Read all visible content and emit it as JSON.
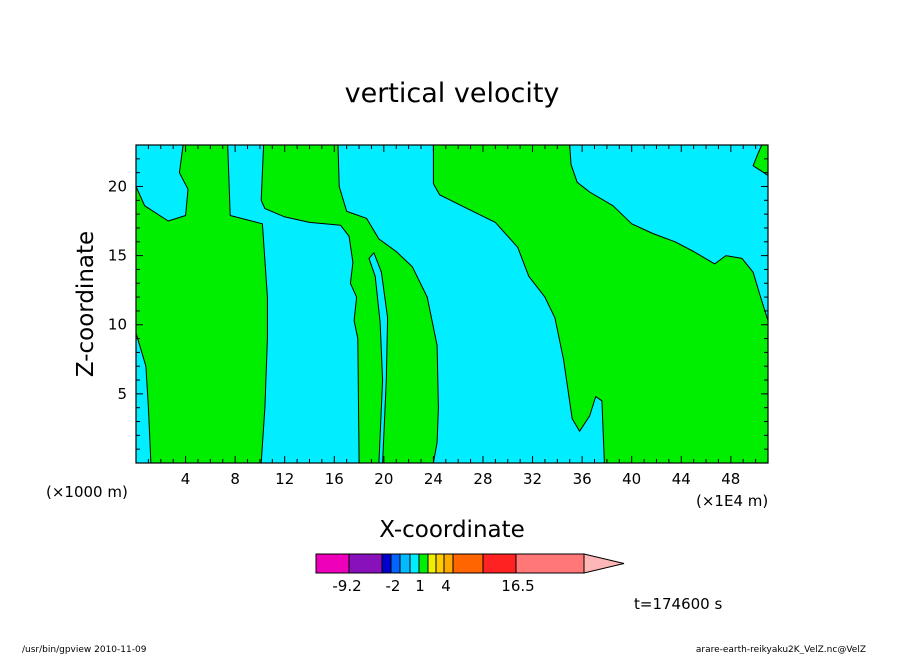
{
  "chart_data": {
    "type": "heatmap",
    "title": "vertical velocity",
    "xlabel": "X-coordinate",
    "ylabel": "Z-coordinate",
    "x_unit": "(×1000 m)",
    "x_unit_right": "(×1E4 m)",
    "x_ticks": [
      4,
      8,
      12,
      16,
      20,
      24,
      28,
      32,
      36,
      40,
      44,
      48
    ],
    "y_ticks": [
      5,
      10,
      15,
      20
    ],
    "xlim": [
      0,
      51
    ],
    "ylim": [
      0,
      23
    ],
    "colors": {
      "positive": "#00ee00",
      "negative": "#00eeff"
    },
    "regions": [
      {
        "sign": "negative",
        "points": [
          [
            0,
            23
          ],
          [
            3.8,
            23
          ],
          [
            3.5,
            21
          ],
          [
            4.2,
            19.8
          ],
          [
            4.0,
            17.9
          ],
          [
            2.6,
            17.5
          ],
          [
            0.7,
            18.6
          ],
          [
            0,
            20
          ]
        ]
      },
      {
        "sign": "negative",
        "points": [
          [
            7.4,
            23
          ],
          [
            10.3,
            23
          ],
          [
            10.1,
            19
          ],
          [
            10.4,
            18.4
          ],
          [
            12,
            17.8
          ],
          [
            14,
            17.4
          ],
          [
            16.5,
            17.2
          ],
          [
            17.2,
            16.4
          ],
          [
            17.5,
            14.5
          ],
          [
            17.3,
            13.0
          ],
          [
            17.8,
            12.0
          ],
          [
            17.6,
            10.3
          ],
          [
            17.9,
            9
          ],
          [
            18.0,
            0
          ],
          [
            10.1,
            0
          ],
          [
            10.4,
            4
          ],
          [
            10.6,
            9.0
          ],
          [
            10.6,
            12
          ],
          [
            10.2,
            17.3
          ],
          [
            7.6,
            17.9
          ]
        ]
      },
      {
        "sign": "negative",
        "points": [
          [
            16.3,
            23
          ],
          [
            24.0,
            23
          ],
          [
            24.0,
            20.2
          ],
          [
            24.5,
            19.4
          ],
          [
            26.5,
            18.5
          ],
          [
            29,
            17.4
          ],
          [
            30.8,
            15.6
          ],
          [
            31.7,
            13.5
          ],
          [
            33,
            12.0
          ],
          [
            33.8,
            10.5
          ],
          [
            34.5,
            7.5
          ],
          [
            35.2,
            3.2
          ],
          [
            35.8,
            2.3
          ],
          [
            36.6,
            3.4
          ],
          [
            37.1,
            4.8
          ],
          [
            37.6,
            4.5
          ],
          [
            37.8,
            0
          ],
          [
            24.0,
            0
          ],
          [
            24.3,
            1.5
          ],
          [
            24.4,
            4.0
          ],
          [
            24.3,
            8.5
          ],
          [
            23.5,
            12.0
          ],
          [
            22.3,
            14.2
          ],
          [
            21.0,
            15.3
          ],
          [
            19.6,
            16.2
          ],
          [
            18.6,
            17.7
          ],
          [
            17.0,
            18.2
          ],
          [
            16.4,
            20.0
          ]
        ]
      },
      {
        "sign": "negative",
        "points": [
          [
            18.8,
            14.8
          ],
          [
            19.3,
            13.5
          ],
          [
            19.7,
            10.2
          ],
          [
            19.9,
            6.0
          ],
          [
            19.6,
            0
          ],
          [
            19.9,
            0
          ],
          [
            20.2,
            6.0
          ],
          [
            20.3,
            10.5
          ],
          [
            19.8,
            13.8
          ],
          [
            19.2,
            15.2
          ]
        ]
      },
      {
        "sign": "negative",
        "points": [
          [
            37.5,
            23
          ],
          [
            50.5,
            23
          ],
          [
            50.2,
            22.4
          ],
          [
            49.8,
            21.5
          ],
          [
            51,
            20.8
          ],
          [
            51,
            10.3
          ],
          [
            50.4,
            12.0
          ],
          [
            49.8,
            13.8
          ],
          [
            48.9,
            14.8
          ],
          [
            47.6,
            15.0
          ],
          [
            46.7,
            14.4
          ],
          [
            45,
            15.3
          ],
          [
            43.5,
            16.0
          ],
          [
            41.7,
            16.6
          ],
          [
            40.0,
            17.3
          ],
          [
            38.5,
            18.6
          ],
          [
            36.6,
            19.6
          ],
          [
            35.6,
            20.3
          ],
          [
            35.1,
            21.6
          ],
          [
            35.0,
            23
          ]
        ]
      },
      {
        "sign": "negative",
        "points": [
          [
            0,
            9.4
          ],
          [
            0.8,
            7.0
          ],
          [
            1.0,
            4.0
          ],
          [
            1.2,
            0
          ],
          [
            0,
            0
          ]
        ]
      }
    ]
  },
  "colorbar": {
    "colors": [
      "#ee00bb",
      "#8811bb",
      "#0000cc",
      "#0066ff",
      "#00bbff",
      "#00eeff",
      "#00ee00",
      "#eeee00",
      "#ffcc00",
      "#ffaa00",
      "#ff6600",
      "#ff2222",
      "#ff7777"
    ],
    "arrow_color": "#ffb6b6",
    "labels": [
      "-9.2",
      "-2",
      "1",
      "4",
      "16.5"
    ]
  },
  "time_label": "t=174600 s",
  "footer": {
    "left": "/usr/bin/gpview   2010-11-09",
    "right": "arare-earth-reikyaku2K_VelZ.nc@VelZ"
  }
}
